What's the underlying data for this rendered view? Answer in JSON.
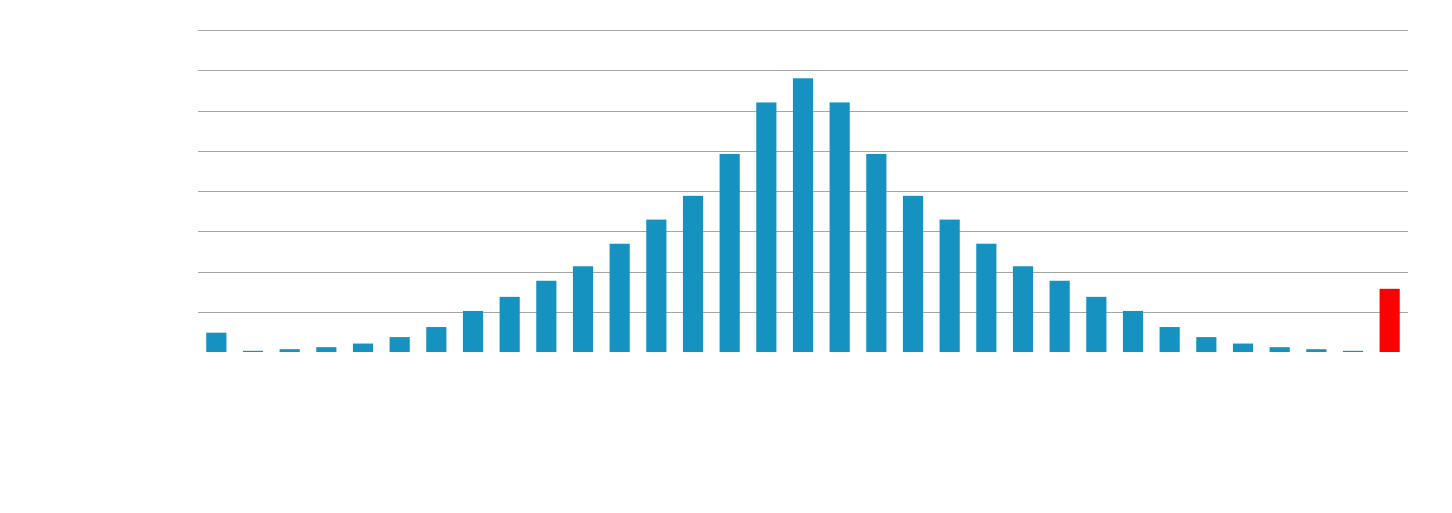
{
  "chart_data": {
    "type": "bar",
    "title": "",
    "xlabel": "",
    "ylabel": "",
    "grid": true,
    "legend": "none",
    "ylim": [
      0,
      8
    ],
    "gridline_values": [
      1,
      2,
      3,
      4,
      5,
      6,
      7,
      8
    ],
    "bar_color": "#1592c0",
    "highlight_color": "#ff0000",
    "highlight_index": 32,
    "values": [
      0.48,
      0.03,
      0.07,
      0.12,
      0.21,
      0.37,
      0.62,
      1.02,
      1.37,
      1.77,
      2.13,
      2.69,
      3.29,
      3.88,
      4.92,
      6.2,
      6.8,
      6.2,
      4.92,
      3.88,
      3.29,
      2.69,
      2.13,
      1.77,
      1.37,
      1.02,
      0.62,
      0.37,
      0.21,
      0.12,
      0.07,
      0.03,
      1.57
    ]
  }
}
